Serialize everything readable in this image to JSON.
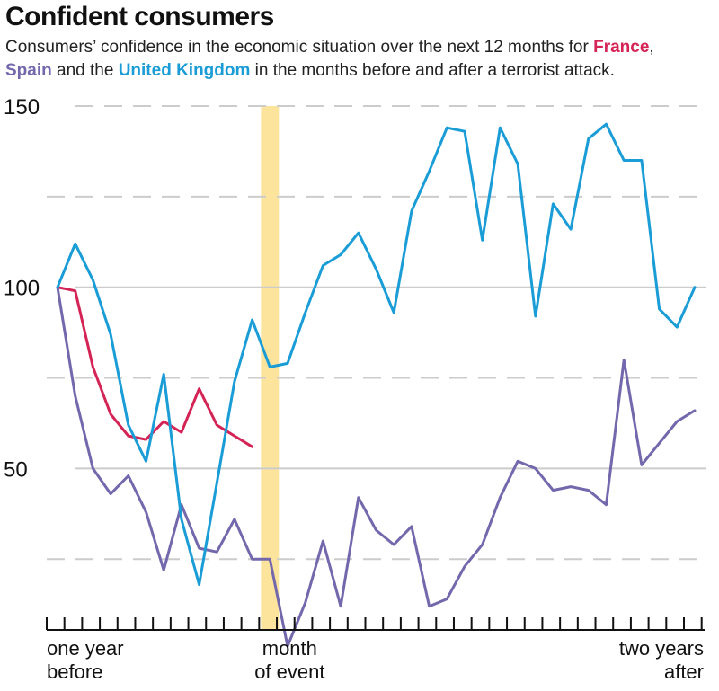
{
  "title": "Confident consumers",
  "subtitle": {
    "part1": "Consumers’ confidence in the economic situation over the next 12 months for ",
    "france": "France",
    "part2": ",",
    "spain": "Spain",
    "part3": " and the ",
    "uk": "United Kingdom",
    "part4": " in the months before and after a terrorist attack."
  },
  "colors": {
    "france": "#d42456",
    "spain": "#7468ad",
    "uk": "#1a9dd6",
    "event_band": "#fde49c",
    "grid_major": "#cccccc",
    "grid_minor": "#cccccc",
    "axis": "#111111"
  },
  "x_labels": {
    "start_line1": "one year",
    "start_line2": "before",
    "event_line1": "month",
    "event_line2": "of event",
    "end_line1": "two years",
    "end_line2": "after"
  },
  "chart_data": {
    "type": "line",
    "title": "Confident consumers",
    "x": [
      -12,
      -11,
      -10,
      -9,
      -8,
      -7,
      -6,
      -5,
      -4,
      -3,
      -2,
      -1,
      0,
      1,
      2,
      3,
      4,
      5,
      6,
      7,
      8,
      9,
      10,
      11,
      12,
      13,
      14,
      15,
      16,
      17,
      18,
      19,
      20,
      21,
      22,
      23,
      24
    ],
    "xlim": [
      -12,
      24
    ],
    "ylim": [
      3,
      150
    ],
    "y_ticks": [
      50,
      100,
      150
    ],
    "y_tick_labels": [
      "50",
      "100",
      "150"
    ],
    "y_minor_ticks": [
      25,
      75,
      125
    ],
    "event_month": 0,
    "grid": true,
    "series": [
      {
        "name": "France",
        "key": "france",
        "values": [
          100,
          99,
          78,
          65,
          59,
          58,
          63,
          60,
          72,
          62,
          59,
          56,
          null,
          null,
          null,
          null,
          null,
          null,
          null,
          null,
          null,
          null,
          null,
          null,
          null,
          null,
          null,
          null,
          null,
          null,
          null,
          null,
          null,
          null,
          null,
          null,
          null
        ]
      },
      {
        "name": "Spain",
        "key": "spain",
        "values": [
          100,
          70,
          50,
          43,
          48,
          38,
          22,
          40,
          28,
          27,
          36,
          25,
          25,
          1,
          13,
          30,
          12,
          42,
          33,
          29,
          34,
          12,
          14,
          23,
          29,
          42,
          52,
          50,
          44,
          45,
          44,
          40,
          80,
          51,
          57,
          63,
          66
        ]
      },
      {
        "name": "United Kingdom",
        "key": "uk",
        "values": [
          100,
          112,
          102,
          87,
          62,
          52,
          76,
          36,
          18,
          46,
          74,
          91,
          78,
          79,
          93,
          106,
          109,
          115,
          105,
          93,
          121,
          132,
          144,
          143,
          113,
          144,
          134,
          92,
          123,
          116,
          141,
          145,
          135,
          135,
          94,
          89,
          100
        ]
      }
    ]
  }
}
